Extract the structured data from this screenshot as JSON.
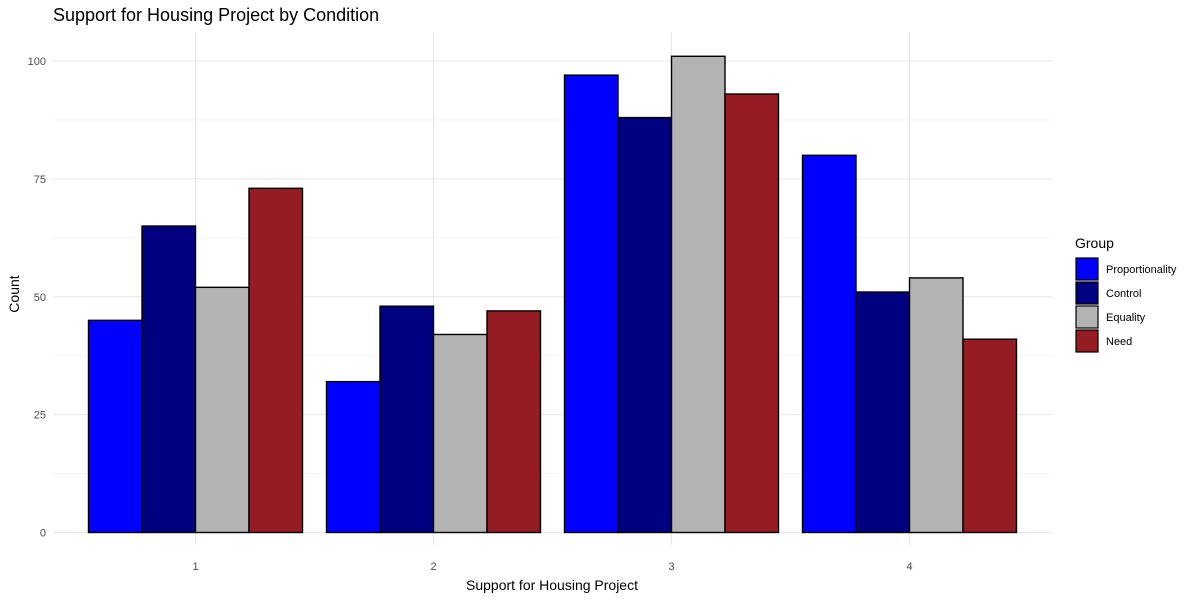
{
  "chart_data": {
    "type": "bar",
    "title": "Support for Housing Project by Condition",
    "xlabel": "Support for Housing Project",
    "ylabel": "Count",
    "categories": [
      "1",
      "2",
      "3",
      "4"
    ],
    "ylim": [
      0,
      105
    ],
    "yticks": [
      "0",
      "25",
      "50",
      "75",
      "100"
    ],
    "grid": true,
    "legend": {
      "title": "Group",
      "placement": "right"
    },
    "series": [
      {
        "name": "Proportionality",
        "color": "#0000FF",
        "values": [
          45,
          32,
          97,
          80
        ]
      },
      {
        "name": "Control",
        "color": "#000080",
        "values": [
          65,
          48,
          88,
          51
        ]
      },
      {
        "name": "Equality",
        "color": "#B3B3B3",
        "values": [
          52,
          42,
          101,
          54
        ]
      },
      {
        "name": "Need",
        "color": "#941C22",
        "values": [
          73,
          47,
          93,
          41
        ]
      }
    ]
  }
}
